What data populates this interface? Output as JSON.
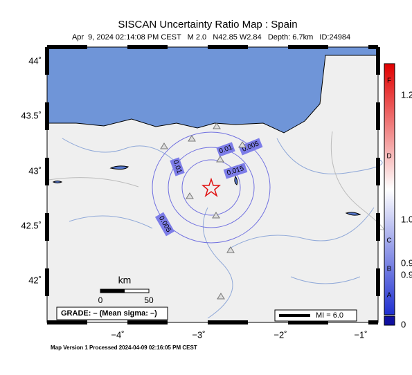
{
  "header": {
    "title": "SISCAN Uncertainty Ratio Map : Spain",
    "subtitle": "Apr  9, 2024 02:14:08 PM CEST   M 2.0   N42.85 W2.84   Depth: 6.7km   ID:24984"
  },
  "map": {
    "lat_labels": [
      "44˚",
      "43.5˚",
      "43˚",
      "42.5˚",
      "42˚"
    ],
    "lon_labels": [
      "−4˚",
      "−3˚",
      "−2˚",
      "−1˚"
    ],
    "contour_labels": [
      "0.005",
      "0.01",
      "0.015",
      "0.01",
      "0.005"
    ]
  },
  "scale": {
    "unit": "km",
    "start": "0",
    "end": "50"
  },
  "grade": "GRADE: – (Mean sigma: –)",
  "legend": "MI = 6.0",
  "colorbar": {
    "grades": [
      "F",
      "D",
      "C",
      "B",
      "A"
    ],
    "values": [
      "1.2",
      "1.0",
      "0.9",
      "0.9",
      "0"
    ]
  },
  "footer": "Map Version 1 Processed 2024-04-09 02:16:05 PM CEST"
}
